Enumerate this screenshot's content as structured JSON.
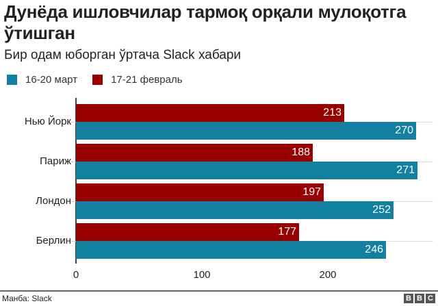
{
  "header": {
    "title": "Дунёда ишловчилар тармоқ орқали мулоқотга ўтишган",
    "subtitle": "Бир одам юборган ўртача Slack хабари"
  },
  "legend": [
    {
      "label": "16-20 март",
      "color": "#1380A1"
    },
    {
      "label": "17-21 февраль",
      "color": "#990000"
    }
  ],
  "footer": {
    "source": "Манба: Slack",
    "logo": [
      "B",
      "B",
      "C"
    ]
  },
  "chart_data": {
    "type": "bar",
    "orientation": "horizontal",
    "title": "Дунёда ишловчилар тармоқ орқали мулоқотга ўтишган",
    "subtitle": "Бир одам юборган ўртача Slack хабари",
    "categories": [
      "Нью Йорк",
      "Париж",
      "Лондон",
      "Берлин"
    ],
    "series": [
      {
        "name": "17-21 февраль",
        "color": "#990000",
        "values": [
          213,
          188,
          197,
          177
        ]
      },
      {
        "name": "16-20 март",
        "color": "#1380A1",
        "values": [
          270,
          271,
          252,
          246
        ]
      }
    ],
    "xticks": [
      "0",
      "100",
      "200"
    ],
    "xlim": [
      0,
      280
    ],
    "xlabel": "",
    "ylabel": "",
    "legend_position": "top",
    "grid": false,
    "source": "Манба: Slack"
  }
}
